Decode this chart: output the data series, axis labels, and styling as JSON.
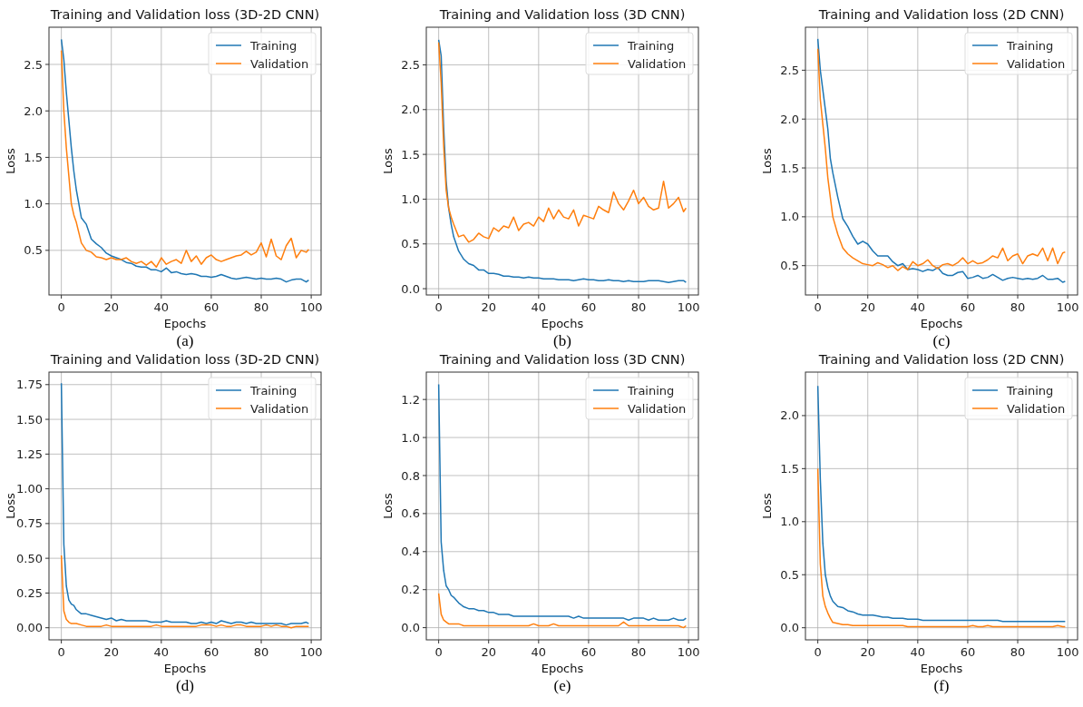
{
  "chart_data": [
    {
      "type": "line",
      "title": "Training and Validation loss (3D-2D CNN)",
      "xlabel": "Epochs",
      "ylabel": "Loss",
      "annotations": [
        "(a)"
      ],
      "grid": true,
      "legend": "top right",
      "xlim": [
        -4.95,
        103.95
      ],
      "xticks": [
        0,
        20,
        40,
        60,
        80,
        100
      ],
      "ylim": [
        0.02,
        2.9
      ],
      "yticks": [
        0.5,
        {
          "value": 1,
          "label": "1.0"
        },
        1.5,
        {
          "value": 2,
          "label": "2.0"
        },
        2.5
      ],
      "x": [
        0,
        1,
        2,
        3,
        4,
        5,
        6,
        8,
        10,
        12,
        14,
        16,
        18,
        20,
        22,
        24,
        26,
        28,
        30,
        32,
        34,
        36,
        38,
        40,
        42,
        44,
        46,
        48,
        50,
        52,
        54,
        56,
        58,
        60,
        62,
        64,
        66,
        68,
        70,
        72,
        74,
        76,
        78,
        80,
        82,
        84,
        86,
        88,
        90,
        92,
        94,
        96,
        98,
        99
      ],
      "series": [
        {
          "name": "Training",
          "color": "#1f77b4",
          "values": [
            2.77,
            2.55,
            2.2,
            1.9,
            1.6,
            1.35,
            1.15,
            0.85,
            0.78,
            0.62,
            0.57,
            0.53,
            0.47,
            0.44,
            0.42,
            0.4,
            0.37,
            0.36,
            0.33,
            0.32,
            0.32,
            0.29,
            0.29,
            0.27,
            0.31,
            0.26,
            0.27,
            0.25,
            0.24,
            0.25,
            0.24,
            0.22,
            0.22,
            0.21,
            0.22,
            0.24,
            0.22,
            0.2,
            0.19,
            0.2,
            0.21,
            0.2,
            0.19,
            0.2,
            0.19,
            0.19,
            0.2,
            0.19,
            0.16,
            0.18,
            0.19,
            0.19,
            0.16,
            0.18
          ]
        },
        {
          "name": "Validation",
          "color": "#ff7f0e",
          "values": [
            2.65,
            2.0,
            1.6,
            1.3,
            1.0,
            0.88,
            0.8,
            0.58,
            0.5,
            0.48,
            0.43,
            0.42,
            0.4,
            0.42,
            0.4,
            0.4,
            0.42,
            0.38,
            0.36,
            0.38,
            0.34,
            0.38,
            0.32,
            0.42,
            0.35,
            0.38,
            0.4,
            0.36,
            0.5,
            0.38,
            0.44,
            0.35,
            0.42,
            0.45,
            0.4,
            0.38,
            0.4,
            0.42,
            0.44,
            0.45,
            0.49,
            0.45,
            0.48,
            0.58,
            0.43,
            0.62,
            0.44,
            0.4,
            0.55,
            0.63,
            0.42,
            0.5,
            0.48,
            0.51
          ]
        }
      ]
    },
    {
      "type": "line",
      "title": "Training and Validation loss (3D CNN)",
      "xlabel": "Epochs",
      "ylabel": "Loss",
      "annotations": [
        "(b)"
      ],
      "grid": true,
      "legend": "top right",
      "xlim": [
        -4.95,
        103.95
      ],
      "xticks": [
        0,
        20,
        40,
        60,
        80,
        100
      ],
      "ylim": [
        -0.07,
        2.92
      ],
      "yticks": [
        {
          "value": 0,
          "label": "0.0"
        },
        0.5,
        {
          "value": 1,
          "label": "1.0"
        },
        1.5,
        {
          "value": 2,
          "label": "2.0"
        },
        2.5
      ],
      "x": [
        0,
        1,
        2,
        3,
        4,
        5,
        6,
        8,
        10,
        12,
        14,
        16,
        18,
        20,
        22,
        24,
        26,
        28,
        30,
        32,
        34,
        36,
        38,
        40,
        42,
        44,
        46,
        48,
        50,
        52,
        54,
        56,
        58,
        60,
        62,
        64,
        66,
        68,
        70,
        72,
        74,
        76,
        78,
        80,
        82,
        84,
        86,
        88,
        90,
        92,
        94,
        96,
        98,
        99
      ],
      "series": [
        {
          "name": "Training",
          "color": "#1f77b4",
          "values": [
            2.78,
            2.6,
            1.8,
            1.2,
            0.9,
            0.72,
            0.58,
            0.42,
            0.33,
            0.28,
            0.26,
            0.21,
            0.21,
            0.17,
            0.17,
            0.16,
            0.14,
            0.14,
            0.13,
            0.13,
            0.12,
            0.13,
            0.12,
            0.12,
            0.11,
            0.11,
            0.11,
            0.1,
            0.1,
            0.1,
            0.09,
            0.1,
            0.11,
            0.1,
            0.1,
            0.09,
            0.09,
            0.1,
            0.09,
            0.09,
            0.08,
            0.09,
            0.08,
            0.08,
            0.08,
            0.09,
            0.09,
            0.09,
            0.08,
            0.07,
            0.08,
            0.09,
            0.09,
            0.07
          ]
        },
        {
          "name": "Validation",
          "color": "#ff7f0e",
          "values": [
            2.75,
            2.3,
            1.6,
            1.1,
            0.9,
            0.8,
            0.72,
            0.58,
            0.6,
            0.52,
            0.55,
            0.62,
            0.58,
            0.56,
            0.68,
            0.64,
            0.7,
            0.68,
            0.8,
            0.65,
            0.72,
            0.74,
            0.7,
            0.8,
            0.75,
            0.9,
            0.78,
            0.88,
            0.8,
            0.78,
            0.88,
            0.7,
            0.82,
            0.8,
            0.78,
            0.92,
            0.88,
            0.85,
            1.08,
            0.95,
            0.88,
            0.98,
            1.1,
            0.95,
            1.02,
            0.92,
            0.88,
            0.9,
            1.2,
            0.9,
            0.95,
            1.02,
            0.86,
            0.9
          ]
        }
      ]
    },
    {
      "type": "line",
      "title": "Training and Validation loss (2D CNN)",
      "xlabel": "Epochs",
      "ylabel": "Loss",
      "annotations": [
        "(c)"
      ],
      "grid": true,
      "legend": "top right",
      "xlim": [
        -4.95,
        103.95
      ],
      "xticks": [
        0,
        20,
        40,
        60,
        80,
        100
      ],
      "ylim": [
        0.2,
        2.94
      ],
      "yticks": [
        0.5,
        {
          "value": 1,
          "label": "1.0"
        },
        1.5,
        {
          "value": 2,
          "label": "2.0"
        },
        2.5
      ],
      "x": [
        0,
        1,
        2,
        3,
        4,
        5,
        6,
        8,
        10,
        12,
        14,
        16,
        18,
        20,
        22,
        24,
        26,
        28,
        30,
        32,
        34,
        36,
        38,
        40,
        42,
        44,
        46,
        48,
        50,
        52,
        54,
        56,
        58,
        60,
        62,
        64,
        66,
        68,
        70,
        72,
        74,
        76,
        78,
        80,
        82,
        84,
        86,
        88,
        90,
        92,
        94,
        96,
        98,
        99
      ],
      "series": [
        {
          "name": "Training",
          "color": "#1f77b4",
          "values": [
            2.82,
            2.5,
            2.3,
            2.1,
            1.9,
            1.6,
            1.45,
            1.2,
            0.98,
            0.9,
            0.8,
            0.72,
            0.75,
            0.72,
            0.65,
            0.6,
            0.6,
            0.6,
            0.54,
            0.5,
            0.52,
            0.46,
            0.47,
            0.46,
            0.44,
            0.46,
            0.45,
            0.48,
            0.42,
            0.4,
            0.4,
            0.43,
            0.44,
            0.37,
            0.38,
            0.4,
            0.37,
            0.38,
            0.41,
            0.38,
            0.35,
            0.37,
            0.38,
            0.37,
            0.36,
            0.37,
            0.36,
            0.37,
            0.4,
            0.36,
            0.36,
            0.37,
            0.33,
            0.34
          ]
        },
        {
          "name": "Validation",
          "color": "#ff7f0e",
          "values": [
            2.72,
            2.2,
            1.95,
            1.7,
            1.4,
            1.2,
            1.0,
            0.82,
            0.68,
            0.62,
            0.58,
            0.55,
            0.52,
            0.51,
            0.5,
            0.53,
            0.51,
            0.48,
            0.5,
            0.45,
            0.49,
            0.46,
            0.54,
            0.5,
            0.52,
            0.56,
            0.5,
            0.47,
            0.51,
            0.52,
            0.5,
            0.53,
            0.58,
            0.52,
            0.55,
            0.52,
            0.53,
            0.56,
            0.6,
            0.58,
            0.68,
            0.55,
            0.6,
            0.62,
            0.52,
            0.6,
            0.62,
            0.6,
            0.68,
            0.55,
            0.68,
            0.52,
            0.63,
            0.64
          ]
        }
      ]
    },
    {
      "type": "line",
      "title": "Training and Validation loss (3D-2D CNN)",
      "xlabel": "Epochs",
      "ylabel": "Loss",
      "annotations": [
        "(d)"
      ],
      "grid": true,
      "legend": "top right",
      "xlim": [
        -4.95,
        103.95
      ],
      "xticks": [
        0,
        20,
        40,
        60,
        80,
        100
      ],
      "ylim": [
        -0.087,
        1.84
      ],
      "yticks": [
        {
          "value": 0,
          "label": "0.00"
        },
        0.25,
        {
          "value": 0.5,
          "label": "0.50"
        },
        0.75,
        {
          "value": 1,
          "label": "1.00"
        },
        1.25,
        {
          "value": 1.5,
          "label": "1.50"
        },
        1.75
      ],
      "x": [
        0,
        1,
        2,
        3,
        4,
        5,
        6,
        8,
        10,
        12,
        14,
        16,
        18,
        20,
        22,
        24,
        26,
        28,
        30,
        32,
        34,
        36,
        38,
        40,
        42,
        44,
        46,
        48,
        50,
        52,
        54,
        56,
        58,
        60,
        62,
        64,
        66,
        68,
        70,
        72,
        74,
        76,
        78,
        80,
        82,
        84,
        86,
        88,
        90,
        92,
        94,
        96,
        98,
        99
      ],
      "series": [
        {
          "name": "Training",
          "color": "#1f77b4",
          "values": [
            1.76,
            0.6,
            0.3,
            0.2,
            0.17,
            0.16,
            0.13,
            0.1,
            0.1,
            0.09,
            0.08,
            0.07,
            0.06,
            0.07,
            0.05,
            0.06,
            0.05,
            0.05,
            0.05,
            0.05,
            0.05,
            0.04,
            0.04,
            0.04,
            0.05,
            0.04,
            0.04,
            0.04,
            0.04,
            0.03,
            0.03,
            0.04,
            0.03,
            0.04,
            0.03,
            0.05,
            0.04,
            0.03,
            0.04,
            0.04,
            0.03,
            0.04,
            0.03,
            0.03,
            0.03,
            0.03,
            0.03,
            0.03,
            0.02,
            0.03,
            0.03,
            0.03,
            0.04,
            0.03
          ]
        },
        {
          "name": "Validation",
          "color": "#ff7f0e",
          "values": [
            0.52,
            0.12,
            0.06,
            0.04,
            0.03,
            0.03,
            0.03,
            0.02,
            0.01,
            0.01,
            0.01,
            0.01,
            0.02,
            0.01,
            0.01,
            0.01,
            0.01,
            0.01,
            0.01,
            0.01,
            0.01,
            0.01,
            0.02,
            0.01,
            0.01,
            0.01,
            0.01,
            0.01,
            0.01,
            0.01,
            0.01,
            0.02,
            0.02,
            0.02,
            0.01,
            0.02,
            0.01,
            0.01,
            0.02,
            0.02,
            0.01,
            0.01,
            0.01,
            0.01,
            0.02,
            0.01,
            0.02,
            0.01,
            0.01,
            0.0,
            0.01,
            0.01,
            0.01,
            0.01
          ]
        }
      ]
    },
    {
      "type": "line",
      "title": "Training and Validation loss (3D CNN)",
      "xlabel": "Epochs",
      "ylabel": "Loss",
      "annotations": [
        "(e)"
      ],
      "grid": true,
      "legend": "top right",
      "xlim": [
        -4.95,
        103.95
      ],
      "xticks": [
        0,
        20,
        40,
        60,
        80,
        100
      ],
      "ylim": [
        -0.064,
        1.344
      ],
      "yticks": [
        {
          "value": 0,
          "label": "0.0"
        },
        0.2,
        0.4,
        0.6,
        0.8,
        {
          "value": 1,
          "label": "1.0"
        },
        1.2
      ],
      "x": [
        0,
        1,
        2,
        3,
        4,
        5,
        6,
        8,
        10,
        12,
        14,
        16,
        18,
        20,
        22,
        24,
        26,
        28,
        30,
        32,
        34,
        36,
        38,
        40,
        42,
        44,
        46,
        48,
        50,
        52,
        54,
        56,
        58,
        60,
        62,
        64,
        66,
        68,
        70,
        72,
        74,
        76,
        78,
        80,
        82,
        84,
        86,
        88,
        90,
        92,
        94,
        96,
        98,
        99
      ],
      "series": [
        {
          "name": "Training",
          "color": "#1f77b4",
          "values": [
            1.28,
            0.45,
            0.3,
            0.22,
            0.2,
            0.17,
            0.16,
            0.13,
            0.11,
            0.1,
            0.1,
            0.09,
            0.09,
            0.08,
            0.08,
            0.07,
            0.07,
            0.07,
            0.06,
            0.06,
            0.06,
            0.06,
            0.06,
            0.06,
            0.06,
            0.06,
            0.06,
            0.06,
            0.06,
            0.06,
            0.05,
            0.06,
            0.05,
            0.05,
            0.05,
            0.05,
            0.05,
            0.05,
            0.05,
            0.05,
            0.05,
            0.04,
            0.05,
            0.05,
            0.05,
            0.04,
            0.05,
            0.04,
            0.04,
            0.04,
            0.05,
            0.04,
            0.04,
            0.05
          ]
        },
        {
          "name": "Validation",
          "color": "#ff7f0e",
          "values": [
            0.18,
            0.07,
            0.04,
            0.03,
            0.02,
            0.02,
            0.02,
            0.02,
            0.01,
            0.01,
            0.01,
            0.01,
            0.01,
            0.01,
            0.01,
            0.01,
            0.01,
            0.01,
            0.01,
            0.01,
            0.01,
            0.01,
            0.02,
            0.01,
            0.01,
            0.01,
            0.02,
            0.01,
            0.01,
            0.01,
            0.01,
            0.01,
            0.01,
            0.01,
            0.01,
            0.01,
            0.01,
            0.01,
            0.01,
            0.01,
            0.03,
            0.01,
            0.01,
            0.01,
            0.01,
            0.01,
            0.01,
            0.01,
            0.01,
            0.01,
            0.01,
            0.01,
            0.0,
            0.01
          ]
        }
      ]
    },
    {
      "type": "line",
      "title": "Training and Validation loss (2D CNN)",
      "xlabel": "Epochs",
      "ylabel": "Loss",
      "annotations": [
        "(f)"
      ],
      "grid": true,
      "legend": "top right",
      "xlim": [
        -4.95,
        103.95
      ],
      "xticks": [
        0,
        20,
        40,
        60,
        80,
        100
      ],
      "ylim": [
        -0.114,
        2.41
      ],
      "yticks": [
        {
          "value": 0,
          "label": "0.0"
        },
        0.5,
        {
          "value": 1,
          "label": "1.0"
        },
        1.5,
        {
          "value": 2,
          "label": "2.0"
        }
      ],
      "x": [
        0,
        1,
        2,
        3,
        4,
        5,
        6,
        8,
        10,
        12,
        14,
        16,
        18,
        20,
        22,
        24,
        26,
        28,
        30,
        32,
        34,
        36,
        38,
        40,
        42,
        44,
        46,
        48,
        50,
        52,
        54,
        56,
        58,
        60,
        62,
        64,
        66,
        68,
        70,
        72,
        74,
        76,
        78,
        80,
        82,
        84,
        86,
        88,
        90,
        92,
        94,
        96,
        98,
        99
      ],
      "series": [
        {
          "name": "Training",
          "color": "#1f77b4",
          "values": [
            2.28,
            1.4,
            0.8,
            0.5,
            0.38,
            0.3,
            0.25,
            0.2,
            0.19,
            0.16,
            0.15,
            0.13,
            0.12,
            0.12,
            0.12,
            0.11,
            0.1,
            0.1,
            0.09,
            0.09,
            0.09,
            0.08,
            0.08,
            0.08,
            0.07,
            0.07,
            0.07,
            0.07,
            0.07,
            0.07,
            0.07,
            0.07,
            0.07,
            0.07,
            0.07,
            0.07,
            0.07,
            0.07,
            0.07,
            0.07,
            0.06,
            0.06,
            0.06,
            0.06,
            0.06,
            0.06,
            0.06,
            0.06,
            0.06,
            0.06,
            0.06,
            0.06,
            0.06,
            0.06
          ]
        },
        {
          "name": "Validation",
          "color": "#ff7f0e",
          "values": [
            1.5,
            0.6,
            0.3,
            0.2,
            0.14,
            0.09,
            0.05,
            0.04,
            0.03,
            0.03,
            0.02,
            0.02,
            0.02,
            0.02,
            0.02,
            0.02,
            0.02,
            0.02,
            0.02,
            0.02,
            0.02,
            0.01,
            0.01,
            0.01,
            0.01,
            0.01,
            0.01,
            0.01,
            0.01,
            0.01,
            0.01,
            0.01,
            0.01,
            0.01,
            0.02,
            0.01,
            0.01,
            0.02,
            0.01,
            0.01,
            0.01,
            0.01,
            0.01,
            0.01,
            0.01,
            0.01,
            0.01,
            0.01,
            0.01,
            0.01,
            0.01,
            0.02,
            0.01,
            0.01
          ]
        }
      ]
    }
  ]
}
